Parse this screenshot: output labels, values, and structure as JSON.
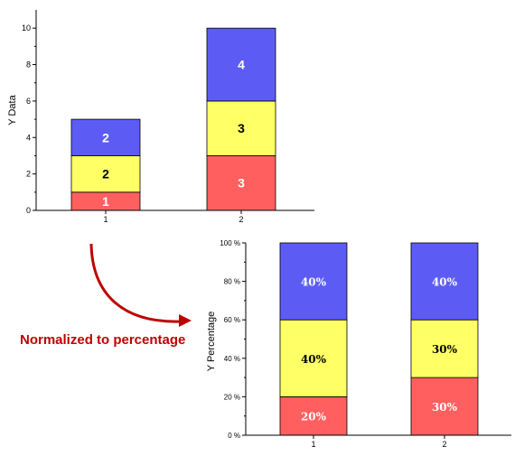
{
  "caption": "Normalized to percentage",
  "colors": {
    "bottom": "#ff5f5f",
    "middle": "#ffff66",
    "top": "#5c5cf5",
    "arrow": "#c00000"
  },
  "chart_data": [
    {
      "type": "bar",
      "stacked": true,
      "categories": [
        "1",
        "2"
      ],
      "series": [
        {
          "color": "#ff5f5f",
          "values": [
            1,
            3
          ],
          "labels": [
            "1",
            "3"
          ]
        },
        {
          "color": "#ffff66",
          "values": [
            2,
            3
          ],
          "labels": [
            "2",
            "3"
          ]
        },
        {
          "color": "#5c5cf5",
          "values": [
            2,
            4
          ],
          "labels": [
            "2",
            "4"
          ]
        }
      ],
      "ylabel": "Y Data",
      "xlabel": "",
      "ylim": [
        0,
        11
      ],
      "yticks": [
        "0",
        "2",
        "4",
        "6",
        "8",
        "10"
      ],
      "grid": false
    },
    {
      "type": "bar",
      "stacked": true,
      "normalized": true,
      "categories": [
        "1",
        "2"
      ],
      "series": [
        {
          "color": "#ff5f5f",
          "values": [
            20,
            30
          ],
          "labels": [
            "20%",
            "30%"
          ]
        },
        {
          "color": "#ffff66",
          "values": [
            40,
            30
          ],
          "labels": [
            "40%",
            "30%"
          ]
        },
        {
          "color": "#5c5cf5",
          "values": [
            40,
            40
          ],
          "labels": [
            "40%",
            "40%"
          ]
        }
      ],
      "ylabel": "Y Percentage",
      "xlabel": "",
      "ylim": [
        0,
        100
      ],
      "yticks": [
        "0 %",
        "20 %",
        "40 %",
        "60 %",
        "80 %",
        "100 %"
      ],
      "grid": false
    }
  ]
}
